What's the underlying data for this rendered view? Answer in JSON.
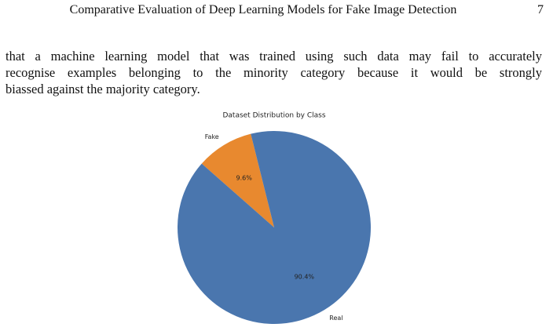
{
  "header": {
    "title": "Comparative Evaluation of Deep Learning Models for Fake Image Detection",
    "page_number": "7"
  },
  "paragraph": {
    "lines": [
      "that a machine learning model that was trained using such data may fail to accurately",
      "recognise examples belonging to the minority category because it would be strongly",
      "biassed against the majority category."
    ]
  },
  "chart_data": {
    "type": "pie",
    "title": "Dataset Distribution by Class",
    "categories": [
      "Fake",
      "Real"
    ],
    "values": [
      9.6,
      90.4
    ],
    "value_labels": [
      "9.6%",
      "90.4%"
    ],
    "colors": [
      "#e8892f",
      "#4a76ae"
    ]
  }
}
